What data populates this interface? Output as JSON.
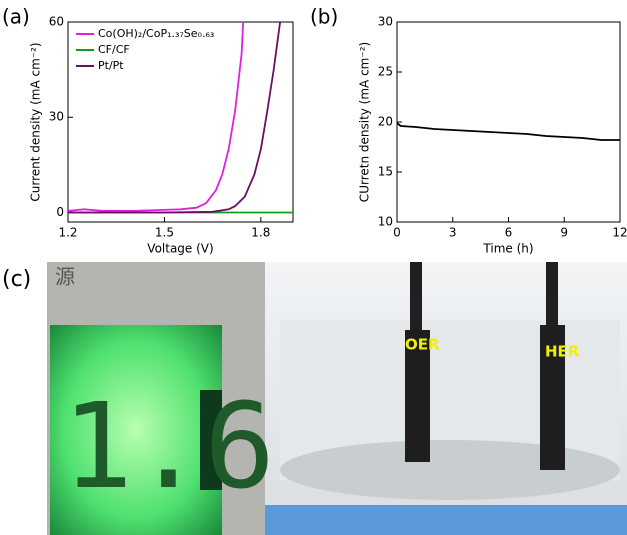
{
  "chart_data": [
    {
      "type": "line",
      "panel_label": "(a)",
      "x_label": "Voltage (V)",
      "y_label": "Current density (mA cm⁻²)",
      "xlim": [
        1.2,
        1.9
      ],
      "xticks": [
        1.2,
        1.5,
        1.8
      ],
      "ylim": [
        -3,
        60
      ],
      "yticks": [
        0,
        30,
        60
      ],
      "legend": "upper left",
      "series": [
        {
          "name": "Co(OH)₂/CoP₁.₃₇Se₀.₆₃",
          "color": "#e020e0",
          "x": [
            1.2,
            1.25,
            1.3,
            1.4,
            1.5,
            1.55,
            1.6,
            1.63,
            1.66,
            1.68,
            1.7,
            1.72,
            1.74,
            1.745
          ],
          "values": [
            0.5,
            1,
            0.6,
            0.5,
            0.8,
            1,
            1.5,
            3,
            7,
            12,
            20,
            32,
            50,
            60
          ]
        },
        {
          "name": "CF/CF",
          "color": "#1a9a1a",
          "x": [
            1.2,
            1.9
          ],
          "values": [
            0,
            0
          ]
        },
        {
          "name": "Pt/Pt",
          "color": "#6a1060",
          "x": [
            1.2,
            1.5,
            1.65,
            1.7,
            1.72,
            1.75,
            1.78,
            1.8,
            1.82,
            1.84,
            1.86
          ],
          "values": [
            0,
            0,
            0.2,
            1,
            2,
            5,
            12,
            20,
            32,
            45,
            60
          ]
        }
      ]
    },
    {
      "type": "line",
      "panel_label": "(b)",
      "x_label": "Time (h)",
      "y_label": "CUrretn density (mA cm⁻²)",
      "xlim": [
        0,
        12
      ],
      "xticks": [
        0,
        3,
        6,
        9,
        12
      ],
      "ylim": [
        10,
        30
      ],
      "yticks": [
        10,
        15,
        20,
        25,
        30
      ],
      "series": [
        {
          "color": "#000000",
          "x": [
            0,
            0.2,
            1,
            2,
            3,
            4,
            5,
            6,
            7,
            8,
            9,
            10,
            11,
            12
          ],
          "values": [
            19.9,
            19.6,
            19.5,
            19.3,
            19.2,
            19.1,
            19,
            18.9,
            18.8,
            18.6,
            18.5,
            18.4,
            18.2,
            18.2
          ]
        }
      ]
    }
  ],
  "photo": {
    "panel_label": "(c)",
    "sign": "源",
    "display": "1.6",
    "labels": [
      "OER",
      "HER"
    ]
  }
}
